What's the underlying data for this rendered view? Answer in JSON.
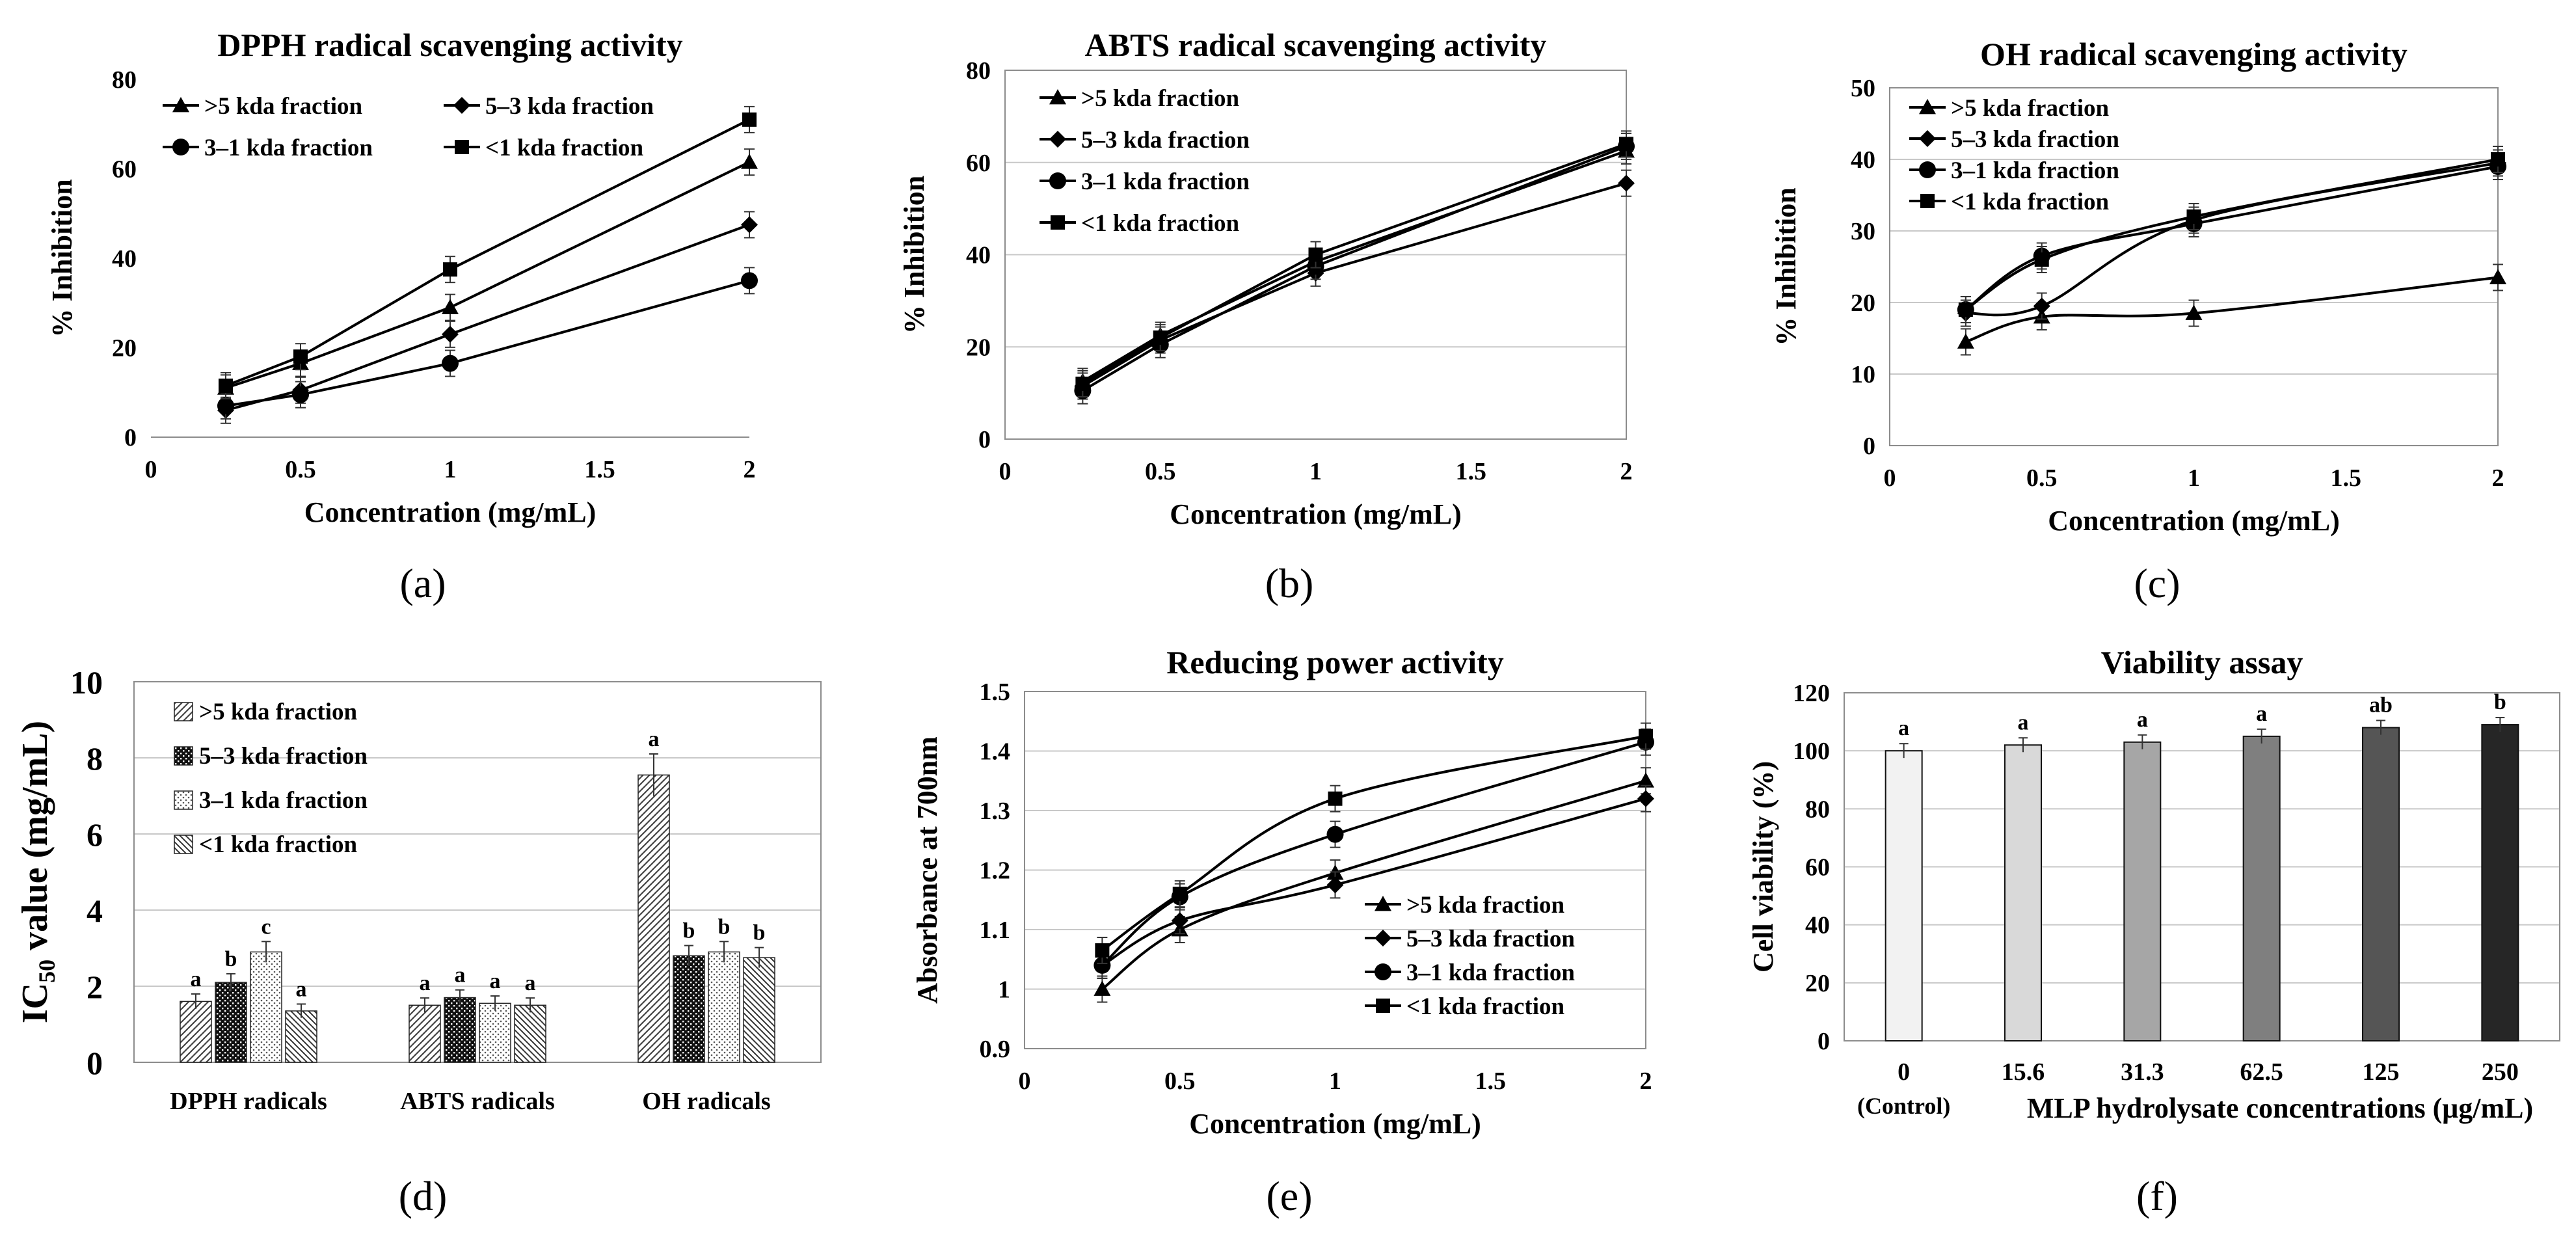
{
  "colors": {
    "line": "#000000",
    "grid": "#c8c8c8",
    "axis": "#8c8c8c"
  },
  "chart_data": [
    {
      "id": "a",
      "panel_label": "(a)",
      "type": "line",
      "title": "DPPH radical scavenging activity",
      "xlabel": "Concentration (mg/mL)",
      "ylabel": "% Inhibition",
      "xlim": [
        0,
        2
      ],
      "ylim": [
        0,
        80
      ],
      "xticks": [
        "0",
        "0.5",
        "1",
        "1.5",
        "2"
      ],
      "yticks": [
        "0",
        "20",
        "40",
        "60",
        "80"
      ],
      "grid": false,
      "legend_position": "top-left, two columns",
      "x": [
        0.25,
        0.5,
        1,
        2
      ],
      "series": [
        {
          "name": ">5 kda fraction",
          "marker": "triangle",
          "values": [
            11,
            16.5,
            29,
            61.5
          ]
        },
        {
          "name": "5–3 kda fraction",
          "marker": "diamond",
          "values": [
            6,
            10.5,
            23,
            47.5
          ]
        },
        {
          "name": "3–1 kda fraction",
          "marker": "circle",
          "values": [
            7,
            9.5,
            16.5,
            35
          ]
        },
        {
          "name": "<1 kda fraction",
          "marker": "square",
          "values": [
            11.5,
            18,
            37.5,
            71
          ]
        }
      ]
    },
    {
      "id": "b",
      "panel_label": "(b)",
      "type": "line",
      "title": "ABTS radical scavenging activity",
      "xlabel": "Concentration (mg/mL)",
      "ylabel": "% Inhibition",
      "xlim": [
        0,
        2
      ],
      "ylim": [
        0,
        80
      ],
      "xticks": [
        "0",
        "0.5",
        "1",
        "1.5",
        "2"
      ],
      "yticks": [
        "0",
        "20",
        "40",
        "60",
        "80"
      ],
      "grid": true,
      "legend_position": "top-left",
      "x": [
        0.25,
        0.5,
        1,
        2
      ],
      "series": [
        {
          "name": ">5 kda fraction",
          "marker": "triangle",
          "values": [
            12.5,
            22.5,
            38.5,
            62.5
          ]
        },
        {
          "name": "5–3 kda fraction",
          "marker": "diamond",
          "values": [
            11.5,
            21.5,
            36,
            55.5
          ]
        },
        {
          "name": "3–1 kda fraction",
          "marker": "circle",
          "values": [
            10.5,
            20.5,
            37.5,
            63.5
          ]
        },
        {
          "name": "<1 kda fraction",
          "marker": "square",
          "values": [
            12,
            22,
            40,
            64
          ]
        }
      ]
    },
    {
      "id": "c",
      "panel_label": "(c)",
      "type": "line",
      "title": "OH radical scavenging activity",
      "xlabel": "Concentration (mg/mL)",
      "ylabel": "% Inhibition",
      "xlim": [
        0,
        2
      ],
      "ylim": [
        0,
        50
      ],
      "xticks": [
        "0",
        "0.5",
        "1",
        "1.5",
        "2"
      ],
      "yticks": [
        "0",
        "10",
        "20",
        "30",
        "40",
        "50"
      ],
      "grid": true,
      "legend_position": "top-left",
      "x": [
        0.25,
        0.5,
        1,
        2
      ],
      "series": [
        {
          "name": ">5 kda fraction",
          "marker": "triangle",
          "values": [
            14.5,
            18,
            18.5,
            23.5
          ]
        },
        {
          "name": "5–3 kda fraction",
          "marker": "diamond",
          "values": [
            18.5,
            19.5,
            31.5,
            39.5
          ]
        },
        {
          "name": "3–1 kda fraction",
          "marker": "circle",
          "values": [
            19,
            26.5,
            31,
            39
          ]
        },
        {
          "name": "<1 kda fraction",
          "marker": "square",
          "values": [
            19,
            26,
            32,
            40
          ]
        }
      ]
    },
    {
      "id": "d",
      "panel_label": "(d)",
      "type": "bar",
      "title": "",
      "ylabel_main": "IC",
      "ylabel_sub": "50",
      "ylabel_rest": " value (mg/mL)",
      "xlabel": "",
      "ylim": [
        0,
        10
      ],
      "yticks": [
        "0",
        "2",
        "4",
        "6",
        "8",
        "10"
      ],
      "grid": true,
      "legend_position": "top-left",
      "categories": [
        "DPPH radicals",
        "ABTS radicals",
        "OH radicals"
      ],
      "series": [
        {
          "name": ">5 kda fraction",
          "pattern": "diag",
          "values": [
            1.6,
            1.5,
            7.55
          ],
          "labels": [
            "a",
            "a",
            "a"
          ]
        },
        {
          "name": "5–3 kda fraction",
          "pattern": "dots",
          "values": [
            2.1,
            1.7,
            2.8
          ],
          "labels": [
            "b",
            "a",
            "b"
          ]
        },
        {
          "name": "3–1 kda fraction",
          "pattern": "light",
          "values": [
            2.9,
            1.55,
            2.9
          ],
          "labels": [
            "c",
            "a",
            "b"
          ]
        },
        {
          "name": "<1 kda fraction",
          "pattern": "hatch",
          "values": [
            1.35,
            1.5,
            2.75
          ],
          "labels": [
            "a",
            "a",
            "b"
          ]
        }
      ]
    },
    {
      "id": "e",
      "panel_label": "(e)",
      "type": "line",
      "title": "Reducing power activity",
      "xlabel": "Concentration (mg/mL)",
      "ylabel": "Absorbance at 700nm",
      "xlim": [
        0,
        2
      ],
      "ylim": [
        0.9,
        1.5
      ],
      "xticks": [
        "0",
        "0.5",
        "1",
        "1.5",
        "2"
      ],
      "yticks": [
        "0.9",
        "1",
        "1.1",
        "1.2",
        "1.3",
        "1.4",
        "1.5"
      ],
      "grid": true,
      "legend_position": "bottom-right",
      "x": [
        0.25,
        0.5,
        1,
        2
      ],
      "series": [
        {
          "name": ">5 kda fraction",
          "marker": "triangle",
          "values": [
            1.0,
            1.1,
            1.195,
            1.35
          ]
        },
        {
          "name": "5–3 kda fraction",
          "marker": "diamond",
          "values": [
            1.04,
            1.115,
            1.175,
            1.32
          ]
        },
        {
          "name": "3–1 kda fraction",
          "marker": "circle",
          "values": [
            1.04,
            1.155,
            1.26,
            1.415
          ]
        },
        {
          "name": "<1 kda fraction",
          "marker": "square",
          "values": [
            1.065,
            1.16,
            1.32,
            1.425
          ]
        }
      ]
    },
    {
      "id": "f",
      "panel_label": "(f)",
      "type": "bar",
      "title": "Viability assay",
      "xlabel": "MLP hydrolysate  concentrations (μg/mL)",
      "ylabel": "Cell viability (%)",
      "ylim": [
        0,
        120
      ],
      "yticks": [
        "0",
        "20",
        "40",
        "60",
        "80",
        "100",
        "120"
      ],
      "grid": true,
      "categories": [
        "0",
        "15.6",
        "31.3",
        "62.5",
        "125",
        "250"
      ],
      "category_note": "(Control)",
      "values": [
        100,
        102,
        103,
        105,
        108,
        109
      ],
      "labels": [
        "a",
        "a",
        "a",
        "a",
        "ab",
        "b"
      ],
      "bar_colors": [
        "#f2f2f2",
        "#d9d9d9",
        "#a6a6a6",
        "#7f7f7f",
        "#555555",
        "#262626"
      ]
    }
  ]
}
